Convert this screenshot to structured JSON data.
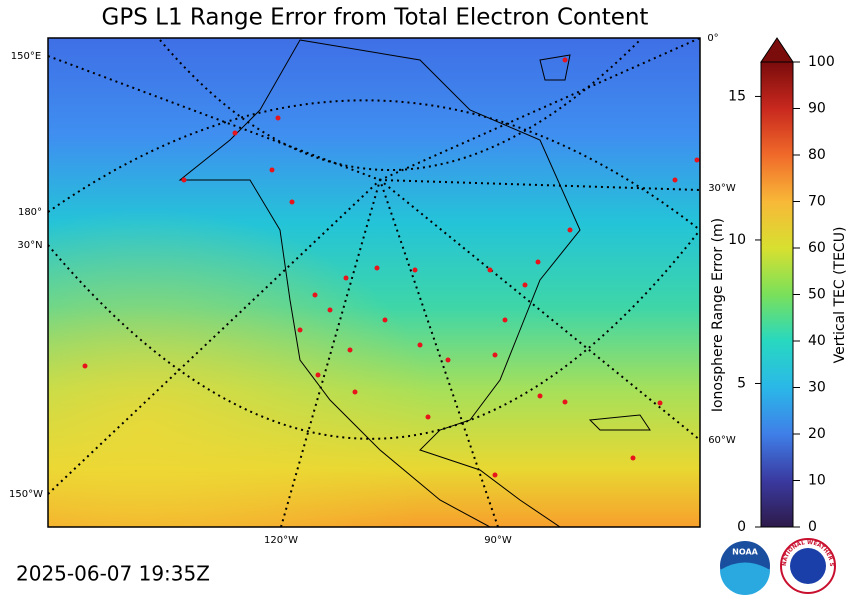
{
  "title": "GPS L1 Range Error from Total Electron Content",
  "timestamp": "2025-06-07 19:35Z",
  "map": {
    "graticule_labels": [
      "150°E",
      "180°",
      "30°N",
      "150°W",
      "120°W",
      "90°W",
      "0°",
      "30°W",
      "60°W"
    ]
  },
  "colorbar": {
    "range_error": {
      "label": "Ionosphere Range Error (m)",
      "lim": [
        0,
        16.2
      ],
      "ticks": [
        0,
        5,
        10,
        15
      ]
    },
    "tec": {
      "label": "Vertical TEC (TECU)",
      "lim": [
        0,
        100
      ],
      "ticks": [
        0,
        10,
        20,
        30,
        40,
        50,
        60,
        70,
        80,
        90,
        100
      ]
    }
  },
  "logos": {
    "noaa": "NOAA",
    "nws": "NATIONAL WEATHER SERVICE"
  }
}
